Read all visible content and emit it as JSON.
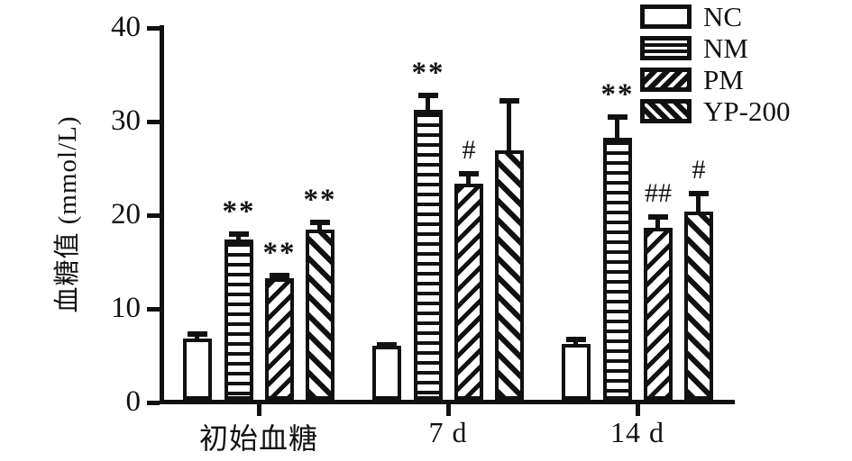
{
  "chart_data": {
    "type": "bar",
    "title": "",
    "xlabel": "",
    "ylabel": "血糖值 (mmol/L)",
    "ylim": [
      0,
      40
    ],
    "yticks": [
      0,
      10,
      20,
      30,
      40
    ],
    "categories": [
      "初始血糖",
      "7 d",
      "14 d"
    ],
    "grid": false,
    "legend_position": "top-right",
    "bar_fill_color": "#ffffff",
    "line_color": "#111111",
    "series": [
      {
        "name": "NC",
        "hatch": "none",
        "values": [
          6.5,
          5.8,
          6.0
        ],
        "errors": [
          0.8,
          0.4,
          0.7
        ],
        "annotations": [
          "",
          "",
          ""
        ]
      },
      {
        "name": "NM",
        "hatch": "horizontal",
        "values": [
          17.1,
          31.0,
          28.0
        ],
        "errors": [
          0.9,
          1.8,
          2.5
        ],
        "annotations": [
          "**",
          "**",
          "**"
        ]
      },
      {
        "name": "PM",
        "hatch": "diagonal-forward",
        "values": [
          13.0,
          23.1,
          18.4
        ],
        "errors": [
          0.6,
          1.3,
          1.4
        ],
        "annotations": [
          "**",
          "#",
          "##"
        ]
      },
      {
        "name": "YP-200",
        "hatch": "diagonal-back",
        "values": [
          18.2,
          26.6,
          20.1
        ],
        "errors": [
          1.0,
          5.6,
          2.2
        ],
        "annotations": [
          "**",
          "",
          "#"
        ]
      }
    ]
  }
}
